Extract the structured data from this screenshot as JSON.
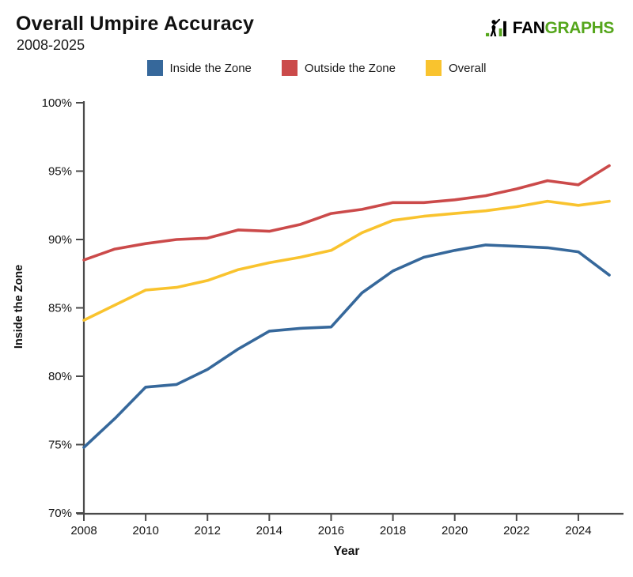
{
  "header": {
    "title": "Overall Umpire Accuracy",
    "subtitle": "2008-2025"
  },
  "logo": {
    "word_black": "FAN",
    "word_green": "GRAPHS",
    "green_color": "#55A61C",
    "black_color": "#000000"
  },
  "chart_data": {
    "type": "line",
    "title": "Overall Umpire Accuracy",
    "subtitle": "2008-2025",
    "xlabel": "Year",
    "ylabel": "Inside the Zone",
    "x": [
      2008,
      2009,
      2010,
      2011,
      2012,
      2013,
      2014,
      2015,
      2016,
      2017,
      2018,
      2019,
      2020,
      2021,
      2022,
      2023,
      2024,
      2025
    ],
    "series": [
      {
        "name": "Inside the Zone",
        "color": "#36689B",
        "values": [
          74.8,
          76.9,
          79.2,
          79.4,
          80.5,
          82.0,
          83.3,
          83.5,
          83.6,
          86.1,
          87.7,
          88.7,
          89.2,
          89.6,
          89.5,
          89.4,
          89.1,
          87.4
        ]
      },
      {
        "name": "Outside the Zone",
        "color": "#CB4A4A",
        "values": [
          88.5,
          89.3,
          89.7,
          90.0,
          90.1,
          90.7,
          90.6,
          91.1,
          91.9,
          92.2,
          92.7,
          92.7,
          92.9,
          93.2,
          93.7,
          94.3,
          94.0,
          95.4
        ]
      },
      {
        "name": "Overall",
        "color": "#F9C32E",
        "values": [
          84.1,
          85.2,
          86.3,
          86.5,
          87.0,
          87.8,
          88.3,
          88.7,
          89.2,
          90.5,
          91.4,
          91.7,
          91.9,
          92.1,
          92.4,
          92.8,
          92.5,
          92.8
        ]
      }
    ],
    "ylim": [
      70,
      100
    ],
    "yticks": [
      70,
      75,
      80,
      85,
      90,
      95,
      100
    ],
    "ytick_suffix": "%",
    "xticks": [
      2008,
      2010,
      2012,
      2014,
      2016,
      2018,
      2020,
      2022,
      2024
    ],
    "grid": false,
    "legend_position": "top",
    "axis_color": "#4a4a4a",
    "tick_label_color": "#141414"
  }
}
